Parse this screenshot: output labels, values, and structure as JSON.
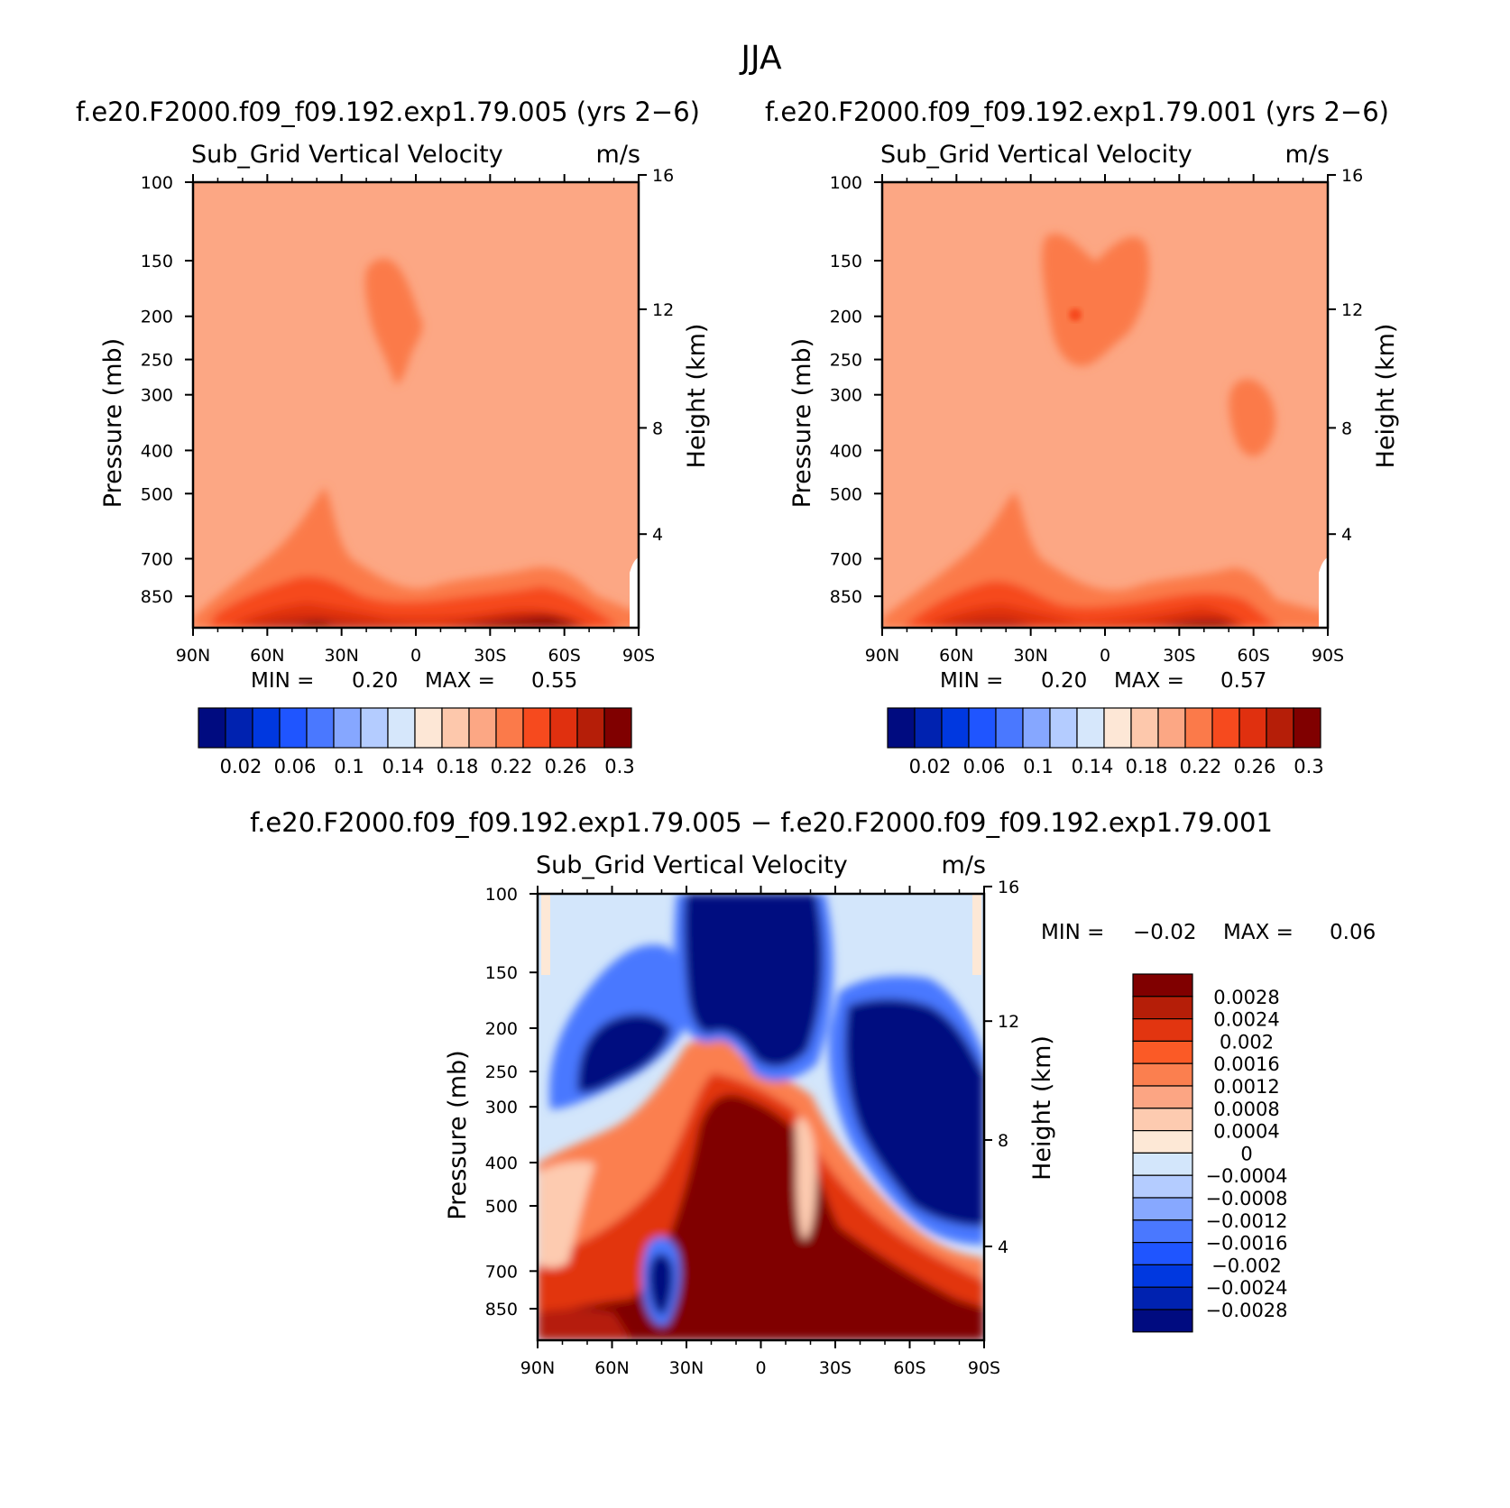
{
  "title": "JJA",
  "colors": {
    "seq": [
      "#000b80",
      "#0022b0",
      "#0038e0",
      "#1f55ff",
      "#4a78ff",
      "#86a7ff",
      "#b4ccff",
      "#d6e7fb",
      "#fde7d6",
      "#fdc8ac",
      "#fca784",
      "#fb7a4a",
      "#f64a1e",
      "#e0300f",
      "#b51e08",
      "#800000"
    ],
    "diff": [
      "#800000",
      "#b51e08",
      "#e23510",
      "#fb5a26",
      "#fb7f4f",
      "#fca583",
      "#fdcbb0",
      "#fde8d6",
      "#d3e6fb",
      "#b4ccff",
      "#87a8ff",
      "#4a78ff",
      "#1f55ff",
      "#0038e0",
      "#0022b0",
      "#000b80"
    ]
  },
  "chart_data": [
    {
      "type": "heatmap",
      "case": "f.e20.F2000.f09_f09.192.exp1.79.005 (yrs 2−6)",
      "title": "Sub_Grid Vertical Velocity",
      "units": "m/s",
      "ylabel": "Pressure (mb)",
      "y2label": "Height (km)",
      "x": [
        "90N",
        "60N",
        "30N",
        "0",
        "30S",
        "60S",
        "90S"
      ],
      "y": [
        "100",
        "150",
        "200",
        "250",
        "300",
        "400",
        "500",
        "700",
        "850"
      ],
      "y2": [
        "16",
        "12",
        "8",
        "4"
      ],
      "ylim": [
        100,
        1000
      ],
      "min_label": "MIN =",
      "min": "0.20",
      "max_label": "MAX =",
      "max": "0.55",
      "colorbar_labels": [
        "0.02",
        "0.06",
        "0.1",
        "0.14",
        "0.18",
        "0.22",
        "0.26",
        "0.3"
      ]
    },
    {
      "type": "heatmap",
      "case": "f.e20.F2000.f09_f09.192.exp1.79.001 (yrs 2−6)",
      "title": "Sub_Grid Vertical Velocity",
      "units": "m/s",
      "ylabel": "Pressure (mb)",
      "y2label": "Height (km)",
      "x": [
        "90N",
        "60N",
        "30N",
        "0",
        "30S",
        "60S",
        "90S"
      ],
      "y": [
        "100",
        "150",
        "200",
        "250",
        "300",
        "400",
        "500",
        "700",
        "850"
      ],
      "y2": [
        "16",
        "12",
        "8",
        "4"
      ],
      "ylim": [
        100,
        1000
      ],
      "min_label": "MIN =",
      "min": "0.20",
      "max_label": "MAX =",
      "max": "0.57",
      "colorbar_labels": [
        "0.02",
        "0.06",
        "0.1",
        "0.14",
        "0.18",
        "0.22",
        "0.26",
        "0.3"
      ]
    },
    {
      "type": "heatmap",
      "case": "f.e20.F2000.f09_f09.192.exp1.79.005 − f.e20.F2000.f09_f09.192.exp1.79.001",
      "title": "Sub_Grid Vertical Velocity",
      "units": "m/s",
      "ylabel": "Pressure (mb)",
      "y2label": "Height (km)",
      "x": [
        "90N",
        "60N",
        "30N",
        "0",
        "30S",
        "60S",
        "90S"
      ],
      "y": [
        "100",
        "150",
        "200",
        "250",
        "300",
        "400",
        "500",
        "700",
        "850"
      ],
      "y2": [
        "16",
        "12",
        "8",
        "4"
      ],
      "ylim": [
        100,
        1000
      ],
      "min_label": "MIN =",
      "min": "−0.02",
      "max_label": "MAX =",
      "max": "0.06",
      "colorbar_labels": [
        "0.0028",
        "0.0024",
        "0.002",
        "0.0016",
        "0.0012",
        "0.0008",
        "0.0004",
        "0",
        "−0.0004",
        "−0.0008",
        "−0.0012",
        "−0.0016",
        "−0.002",
        "−0.0024",
        "−0.0028"
      ]
    }
  ]
}
